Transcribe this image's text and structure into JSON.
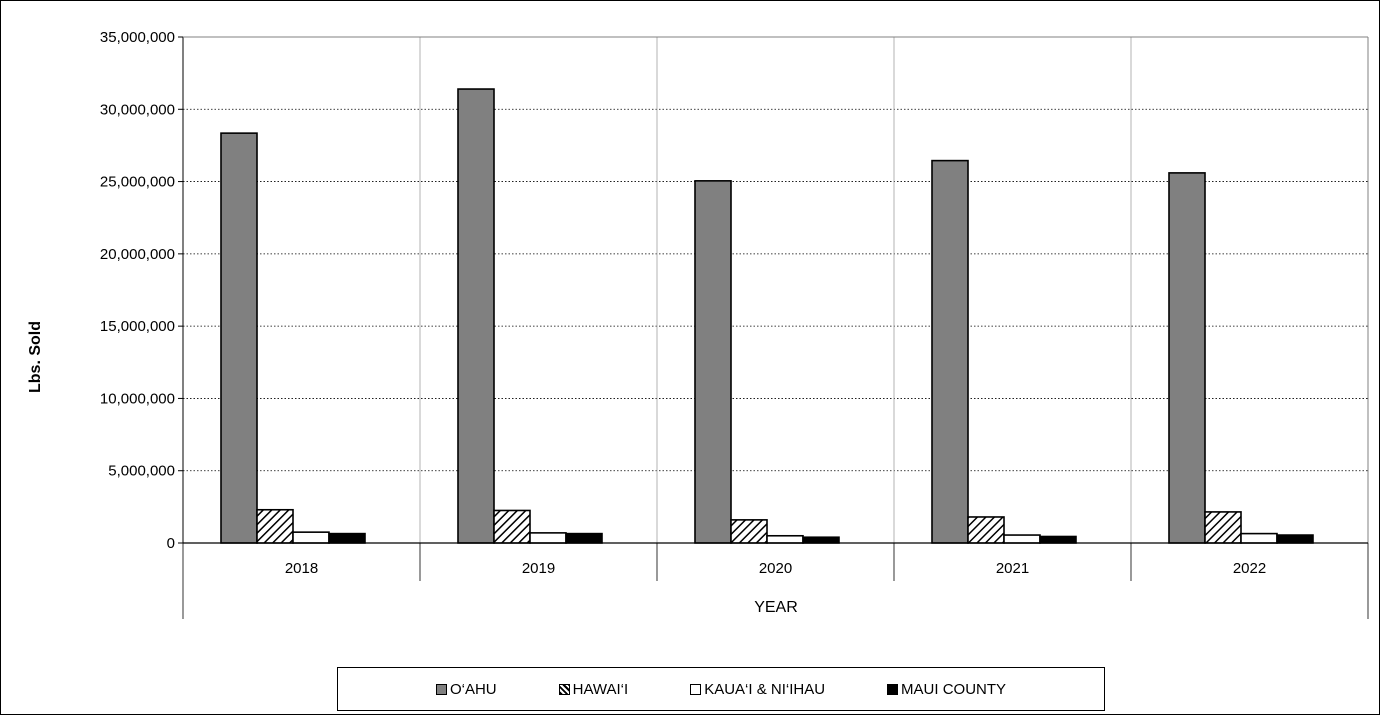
{
  "chart_data": {
    "type": "bar",
    "title": "",
    "xlabel": "YEAR",
    "ylabel": "Lbs. Sold",
    "ylim": [
      0,
      35000000
    ],
    "yticks": [
      0,
      5000000,
      10000000,
      15000000,
      20000000,
      25000000,
      30000000,
      35000000
    ],
    "ytick_labels": [
      "0",
      "5,000,000",
      "10,000,000",
      "15,000,000",
      "20,000,000",
      "25,000,000",
      "30,000,000",
      "35,000,000"
    ],
    "categories": [
      "2018",
      "2019",
      "2020",
      "2021",
      "2022"
    ],
    "grid": "horizontal dotted",
    "legend_position": "bottom",
    "series": [
      {
        "name": "O‘AHU",
        "fill": "#808080",
        "pattern": "solid",
        "values": [
          28350000,
          31400000,
          25050000,
          26450000,
          25600000
        ]
      },
      {
        "name": "HAWAI‘I",
        "fill": "#ffffff",
        "pattern": "diagonal-hatch",
        "values": [
          2300000,
          2250000,
          1600000,
          1800000,
          2150000
        ]
      },
      {
        "name": "KAUA‘I & NI‘IHAU",
        "fill": "#ffffff",
        "pattern": "solid",
        "values": [
          750000,
          700000,
          500000,
          550000,
          650000
        ]
      },
      {
        "name": "MAUI COUNTY",
        "fill": "#000000",
        "pattern": "solid",
        "values": [
          650000,
          650000,
          400000,
          450000,
          550000
        ]
      }
    ]
  }
}
